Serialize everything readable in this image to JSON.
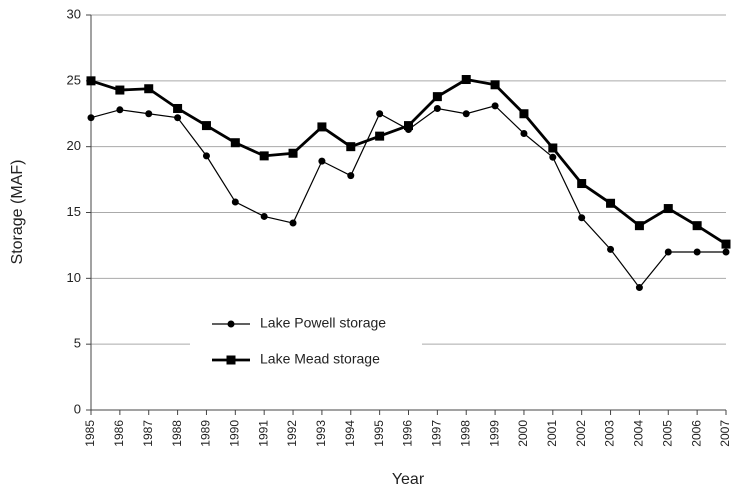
{
  "chart_data": {
    "type": "line",
    "x_label": "Year",
    "y_label": "Storage (MAF)",
    "categories": [
      "1985",
      "1986",
      "1987",
      "1988",
      "1989",
      "1990",
      "1991",
      "1992",
      "1993",
      "1994",
      "1995",
      "1996",
      "1997",
      "1998",
      "1999",
      "2000",
      "2001",
      "2002",
      "2003",
      "2004",
      "2005",
      "2006",
      "2007"
    ],
    "series": [
      {
        "name": "Lake Powell storage",
        "color": "#000000",
        "marker": "circle",
        "values": [
          22.2,
          22.8,
          22.5,
          22.2,
          19.3,
          15.8,
          14.7,
          14.2,
          18.9,
          17.8,
          22.5,
          21.3,
          22.9,
          22.5,
          23.1,
          21.0,
          19.2,
          14.6,
          12.2,
          9.3,
          12.0,
          12.0,
          12.0
        ]
      },
      {
        "name": "Lake Mead storage",
        "color": "#000000",
        "marker": "square",
        "values": [
          25.0,
          24.3,
          24.4,
          22.9,
          21.6,
          20.3,
          19.3,
          19.5,
          21.5,
          20.0,
          20.8,
          21.6,
          23.8,
          25.1,
          24.7,
          22.5,
          19.9,
          17.2,
          15.7,
          14.0,
          15.3,
          14.0,
          12.6
        ]
      }
    ],
    "ylim": [
      0,
      30
    ],
    "yticks": [
      0,
      5,
      10,
      15,
      20,
      25,
      30
    ],
    "grid": true,
    "legend": "lower left"
  }
}
